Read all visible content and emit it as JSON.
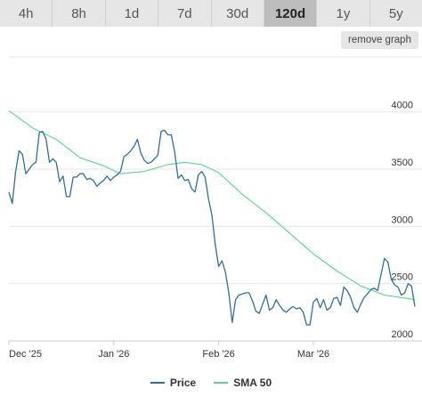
{
  "timeframes": [
    "4h",
    "8h",
    "1d",
    "7d",
    "30d",
    "120d",
    "1y",
    "5y"
  ],
  "active_timeframe": "120d",
  "remove_graph_label": "remove graph",
  "colors": {
    "price": "#2f6f9f",
    "sma": "#58d68d",
    "grid": "#e6e6e6",
    "axis_text": "#333333"
  },
  "chart_data": {
    "type": "line",
    "x_tick_labels": [
      "Dec '25",
      "Jan '26",
      "Feb '26",
      "Mar '26"
    ],
    "x_tick_dates": [
      "2025-12-01",
      "2026-01-01",
      "2026-02-01",
      "2026-03-01"
    ],
    "y_ticks": [
      2000,
      2500,
      3000,
      3500,
      4000
    ],
    "xlim": [
      "2025-12-01",
      "2026-03-31"
    ],
    "ylim": [
      2000,
      4200
    ],
    "grid": true,
    "legend_position": "bottom",
    "series": [
      {
        "name": "Price",
        "color": "#2f6f9f",
        "x": [
          "2025-12-01",
          "2025-12-02",
          "2025-12-03",
          "2025-12-04",
          "2025-12-05",
          "2025-12-06",
          "2025-12-07",
          "2025-12-08",
          "2025-12-09",
          "2025-12-10",
          "2025-12-11",
          "2025-12-12",
          "2025-12-13",
          "2025-12-14",
          "2025-12-15",
          "2025-12-16",
          "2025-12-17",
          "2025-12-18",
          "2025-12-19",
          "2025-12-20",
          "2025-12-21",
          "2025-12-22",
          "2025-12-23",
          "2025-12-24",
          "2025-12-25",
          "2025-12-26",
          "2025-12-27",
          "2025-12-28",
          "2025-12-29",
          "2025-12-30",
          "2025-12-31",
          "2026-01-01",
          "2026-01-02",
          "2026-01-03",
          "2026-01-04",
          "2026-01-05",
          "2026-01-06",
          "2026-01-07",
          "2026-01-08",
          "2026-01-09",
          "2026-01-10",
          "2026-01-11",
          "2026-01-12",
          "2026-01-13",
          "2026-01-14",
          "2026-01-15",
          "2026-01-16",
          "2026-01-17",
          "2026-01-18",
          "2026-01-19",
          "2026-01-20",
          "2026-01-21",
          "2026-01-22",
          "2026-01-23",
          "2026-01-24",
          "2026-01-25",
          "2026-01-26",
          "2026-01-27",
          "2026-01-28",
          "2026-01-29",
          "2026-01-30",
          "2026-01-31",
          "2026-02-01",
          "2026-02-02",
          "2026-02-03",
          "2026-02-04",
          "2026-02-05",
          "2026-02-06",
          "2026-02-07",
          "2026-02-08",
          "2026-02-09",
          "2026-02-10",
          "2026-02-11",
          "2026-02-12",
          "2026-02-13",
          "2026-02-14",
          "2026-02-15",
          "2026-02-16",
          "2026-02-17",
          "2026-02-18",
          "2026-02-19",
          "2026-02-20",
          "2026-02-21",
          "2026-02-22",
          "2026-02-23",
          "2026-02-24",
          "2026-02-25",
          "2026-02-26",
          "2026-02-27",
          "2026-02-28",
          "2026-03-01",
          "2026-03-02",
          "2026-03-03",
          "2026-03-04",
          "2026-03-05",
          "2026-03-06",
          "2026-03-07",
          "2026-03-08",
          "2026-03-09",
          "2026-03-10",
          "2026-03-11",
          "2026-03-12",
          "2026-03-13",
          "2026-03-14",
          "2026-03-15",
          "2026-03-16",
          "2026-03-17",
          "2026-03-18",
          "2026-03-19",
          "2026-03-20",
          "2026-03-21",
          "2026-03-22",
          "2026-03-23",
          "2026-03-24",
          "2026-03-25",
          "2026-03-26",
          "2026-03-27",
          "2026-03-28",
          "2026-03-29",
          "2026-03-30",
          "2026-03-31"
        ],
        "values": [
          3300,
          3200,
          3480,
          3660,
          3630,
          3460,
          3500,
          3540,
          3560,
          3820,
          3830,
          3760,
          3560,
          3590,
          3560,
          3390,
          3440,
          3260,
          3260,
          3430,
          3430,
          3460,
          3460,
          3410,
          3420,
          3400,
          3350,
          3380,
          3400,
          3440,
          3400,
          3430,
          3450,
          3480,
          3610,
          3630,
          3660,
          3700,
          3760,
          3640,
          3580,
          3550,
          3560,
          3590,
          3620,
          3830,
          3840,
          3800,
          3800,
          3650,
          3420,
          3450,
          3400,
          3410,
          3330,
          3300,
          3450,
          3480,
          3430,
          3240,
          3100,
          2840,
          2650,
          2700,
          2600,
          2420,
          2160,
          2360,
          2400,
          2410,
          2420,
          2420,
          2350,
          2260,
          2240,
          2320,
          2400,
          2270,
          2290,
          2360,
          2310,
          2270,
          2250,
          2280,
          2300,
          2280,
          2290,
          2250,
          2140,
          2140,
          2340,
          2370,
          2290,
          2360,
          2270,
          2290,
          2370,
          2380,
          2310,
          2470,
          2440,
          2380,
          2290,
          2250,
          2320,
          2380,
          2410,
          2450,
          2460,
          2440,
          2580,
          2720,
          2690,
          2540,
          2490,
          2470,
          2400,
          2420,
          2500,
          2480,
          2300
        ]
      },
      {
        "name": "SMA 50",
        "color": "#58d68d",
        "x": [
          "2025-12-01",
          "2025-12-08",
          "2025-12-15",
          "2025-12-22",
          "2025-12-29",
          "2026-01-03",
          "2026-01-10",
          "2026-01-17",
          "2026-01-22",
          "2026-01-27",
          "2026-02-01",
          "2026-02-08",
          "2026-02-15",
          "2026-02-22",
          "2026-03-01",
          "2026-03-08",
          "2026-03-15",
          "2026-03-22",
          "2026-03-29",
          "2026-03-31"
        ],
        "values": [
          4010,
          3860,
          3760,
          3600,
          3530,
          3460,
          3480,
          3540,
          3560,
          3540,
          3470,
          3280,
          3120,
          2940,
          2760,
          2610,
          2480,
          2400,
          2370,
          2360
        ]
      }
    ]
  }
}
